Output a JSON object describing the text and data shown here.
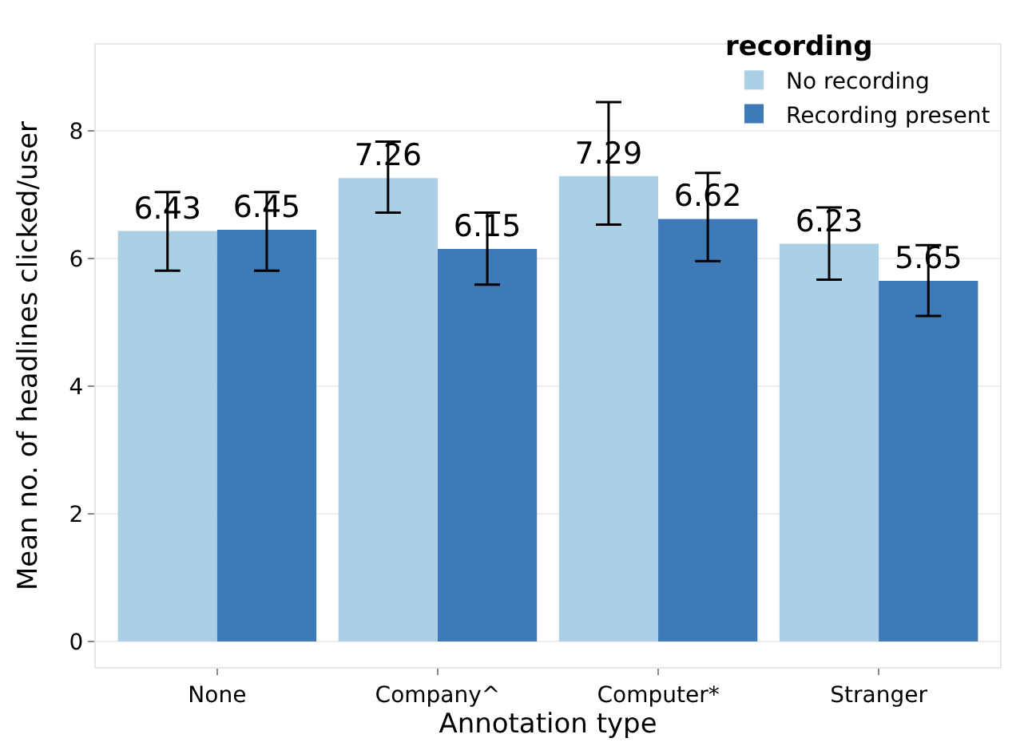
{
  "chart_data": {
    "type": "bar",
    "xlabel": "Annotation type",
    "ylabel": "Mean no. of headlines clicked/user",
    "legend_title": "recording",
    "categories": [
      "None",
      "Company^",
      "Computer*",
      "Stranger"
    ],
    "series": [
      {
        "name": "No recording",
        "color": "#abd0e6",
        "values": [
          6.43,
          7.26,
          7.29,
          6.23
        ],
        "errors": [
          [
            5.81,
            7.04
          ],
          [
            6.72,
            7.83
          ],
          [
            6.53,
            8.45
          ],
          [
            5.67,
            6.8
          ]
        ]
      },
      {
        "name": "Recording present",
        "color": "#3f7ab8",
        "values": [
          6.45,
          6.15,
          6.62,
          5.65
        ],
        "errors": [
          [
            5.81,
            7.04
          ],
          [
            5.59,
            6.72
          ],
          [
            5.96,
            7.34
          ],
          [
            5.1,
            6.21
          ]
        ]
      }
    ],
    "ylim": [
      -0.4,
      9.35
    ],
    "yticks": [
      0,
      2,
      4,
      6,
      8
    ],
    "grid": true,
    "legend": "top right",
    "data_labels": true
  }
}
